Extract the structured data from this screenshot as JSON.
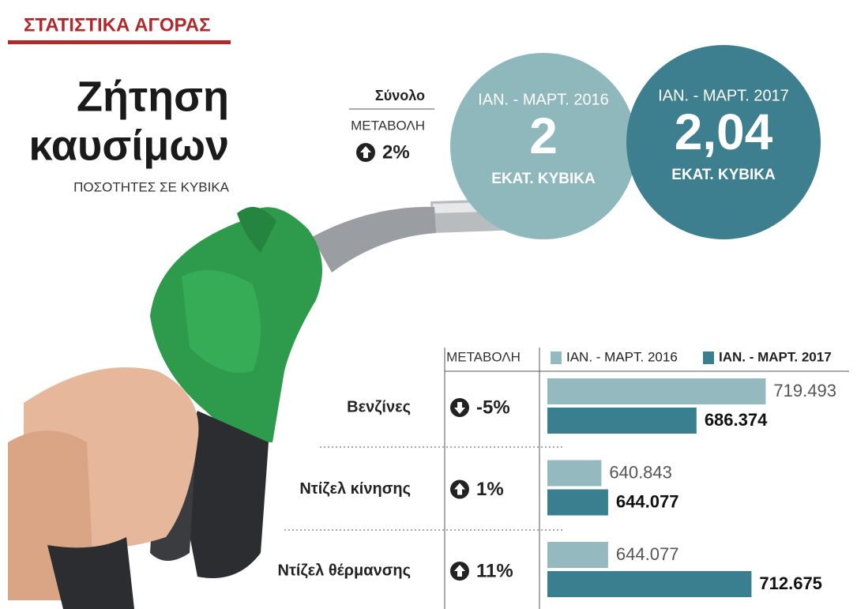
{
  "section": "ΣΤΑΤΙΣΤΙΚΑ ΑΓΟΡΑΣ",
  "title": [
    "Ζήτηση",
    "καυσίμων"
  ],
  "subtitle": "ΠΟΣΟΤΗΤΕΣ ΣΕ ΚΥΒΙΚΑ",
  "total": {
    "label": "Σύνολο",
    "change_header": "ΜΕΤΑΒΟΛΗ",
    "change": 2,
    "change_label": "2%"
  },
  "circles": [
    {
      "period": "ΙΑΝ. - ΜΑΡΤ. 2016",
      "value": 2,
      "unit": "ΕΚΑΤ. ΚΥΒΙΚΑ",
      "color": "#8fb8bd"
    },
    {
      "period": "ΙΑΝ. - ΜΑΡΤ. 2017",
      "value": 2.04,
      "value_label": "2,04",
      "unit": "ΕΚΑΤ. ΚΥΒΙΚΑ",
      "color": "#3d7f8e"
    }
  ],
  "chart_data": {
    "type": "hbar",
    "categories": [
      "Βενζίνες",
      "Ντίζελ κίνησης",
      "Ντίζελ θέρμανσης"
    ],
    "change_header": "ΜΕΤΑΒΟΛΗ",
    "changes": [
      -5,
      1,
      11
    ],
    "change_labels": [
      "-5%",
      "1%",
      "11%"
    ],
    "series": [
      {
        "name": "ΙΑΝ. - ΜΑΡΤ. 2016",
        "color": "#94b9bf",
        "values": [
          719493,
          640843,
          644077
        ],
        "value_labels": [
          "719.493",
          "640.843",
          "644.077"
        ]
      },
      {
        "name": "ΙΑΝ. - ΜΑΡΤ. 2017",
        "color": "#3a7f8f",
        "values": [
          686374,
          644077,
          712675
        ],
        "value_labels": [
          "686.374",
          "644.077",
          "712.675"
        ]
      }
    ],
    "xlim": [
      615000,
      725000
    ]
  }
}
